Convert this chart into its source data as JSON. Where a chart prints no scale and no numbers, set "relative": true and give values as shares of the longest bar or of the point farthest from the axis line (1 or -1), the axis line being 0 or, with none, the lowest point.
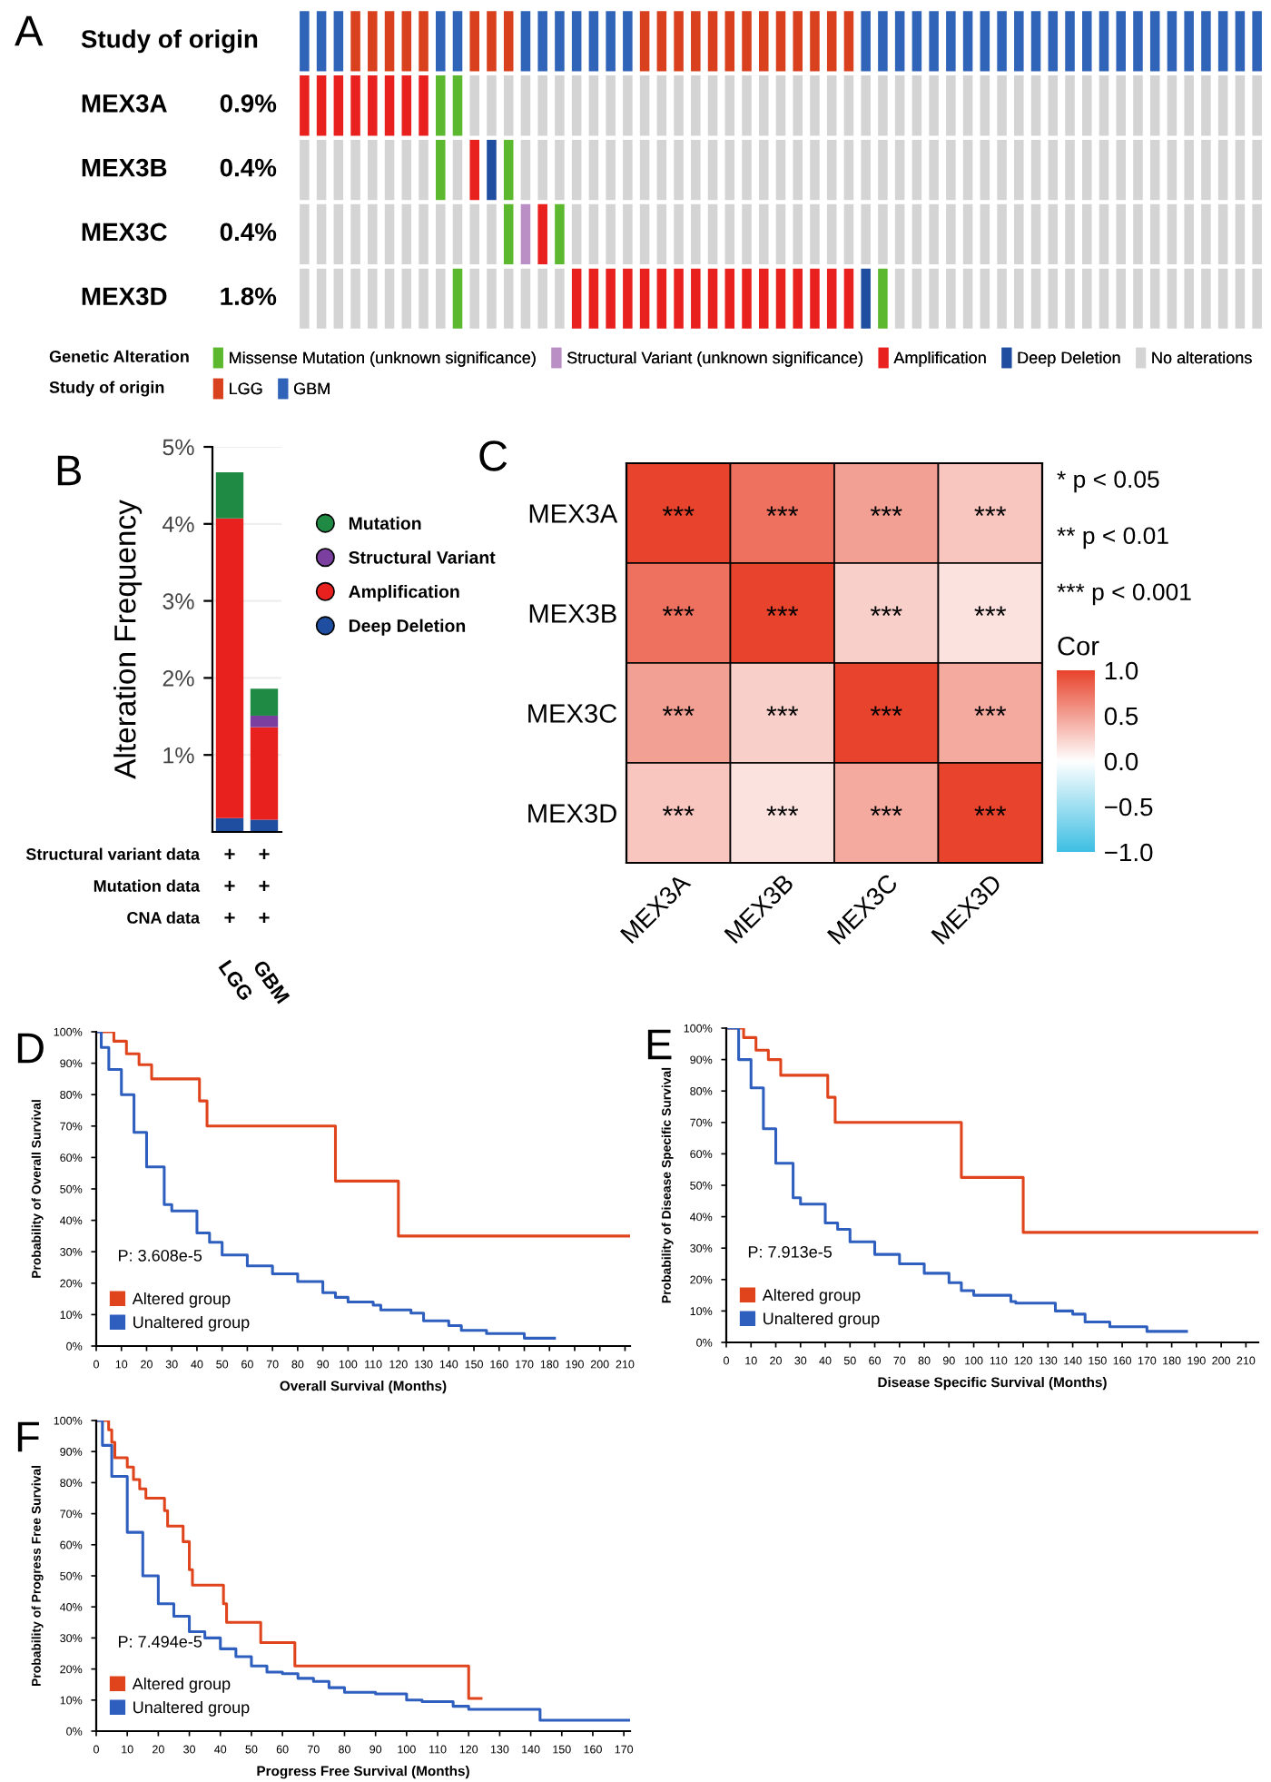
{
  "chart_data": [
    {
      "type": "bar",
      "title": "A",
      "stacked": true,
      "relative": true,
      "legend": "bottom",
      "legend_title": "Genetic Alteration",
      "annotations": [
        "Study of origin",
        "Study of origin",
        "MEX3A",
        "0.9%",
        "MEX3B",
        "0.4%",
        "MEX3C",
        "0.4%",
        "MEX3D",
        "1.8%"
      ],
      "categories": [
        null,
        null,
        null,
        null,
        null,
        null,
        null,
        null,
        null,
        null,
        null,
        null,
        null,
        null,
        null,
        null,
        null,
        null,
        null,
        null,
        null,
        null,
        null,
        null,
        null,
        null,
        null,
        null,
        null,
        null,
        null,
        null,
        null,
        null,
        null,
        null,
        null,
        null,
        null,
        null,
        null,
        null,
        null,
        null,
        null,
        null,
        null,
        null,
        null,
        null,
        null,
        null,
        null,
        null,
        null,
        null,
        null
      ],
      "series": [
        {
          "values": [
            0.2,
            0.2,
            0.2,
            0.2,
            0.2,
            0.2,
            0.2,
            0.2,
            0.2,
            0.2,
            0.2,
            0.2,
            0.2,
            0.2,
            0.2,
            0.2,
            0.2,
            0.2,
            0.2,
            0.2,
            0.2,
            0.2,
            0.2,
            0.2,
            0.2,
            0.2,
            0.2,
            0.2,
            0.2,
            0.2,
            0.2,
            0.2,
            0.2,
            0.2,
            0.2,
            0.2,
            0.2,
            0.2,
            0.2,
            0.2,
            0.2,
            0.2,
            0.2,
            0.2,
            0.2,
            0.2,
            0.2,
            0.2,
            0.2,
            0.2,
            0.2,
            0.2,
            0.2,
            0.2,
            0.2,
            0.2,
            0.2
          ],
          "colors": [
            "#d4d4d4",
            "#d4d4d4",
            "#d4d4d4",
            "#d4d4d4",
            "#d4d4d4",
            "#d4d4d4",
            "#d4d4d4",
            "#d4d4d4",
            "#d4d4d4",
            "#5cb82e",
            "#d4d4d4",
            "#d4d4d4",
            "#d4d4d4",
            "#d4d4d4",
            "#d4d4d4",
            "#d4d4d4",
            "#e8211f",
            "#e8211f",
            "#e8211f",
            "#e8211f",
            "#e8211f",
            "#e8211f",
            "#e8211f",
            "#e8211f",
            "#e8211f",
            "#e8211f",
            "#e8211f",
            "#e8211f",
            "#e8211f",
            "#e8211f",
            "#e8211f",
            "#e8211f",
            "#e8211f",
            "#1f4ea0",
            "#5cb82e",
            "#d4d4d4",
            "#d4d4d4",
            "#d4d4d4",
            "#d4d4d4",
            "#d4d4d4",
            "#d4d4d4",
            "#d4d4d4",
            "#d4d4d4",
            "#d4d4d4",
            "#d4d4d4",
            "#d4d4d4",
            "#d4d4d4",
            "#d4d4d4",
            "#d4d4d4",
            "#d4d4d4",
            "#d4d4d4",
            "#d4d4d4",
            "#d4d4d4",
            "#d4d4d4",
            "#d4d4d4",
            "#d4d4d4",
            "#d4d4d4"
          ]
        },
        {
          "values": [
            0.2,
            0.2,
            0.2,
            0.2,
            0.2,
            0.2,
            0.2,
            0.2,
            0.2,
            0.2,
            0.2,
            0.2,
            0.2,
            0.2,
            0.2,
            0.2,
            0.2,
            0.2,
            0.2,
            0.2,
            0.2,
            0.2,
            0.2,
            0.2,
            0.2,
            0.2,
            0.2,
            0.2,
            0.2,
            0.2,
            0.2,
            0.2,
            0.2,
            0.2,
            0.2,
            0.2,
            0.2,
            0.2,
            0.2,
            0.2,
            0.2,
            0.2,
            0.2,
            0.2,
            0.2,
            0.2,
            0.2,
            0.2,
            0.2,
            0.2,
            0.2,
            0.2,
            0.2,
            0.2,
            0.2,
            0.2,
            0.2
          ],
          "colors": [
            "#d4d4d4",
            "#d4d4d4",
            "#d4d4d4",
            "#d4d4d4",
            "#d4d4d4",
            "#d4d4d4",
            "#d4d4d4",
            "#d4d4d4",
            "#d4d4d4",
            "#d4d4d4",
            "#d4d4d4",
            "#d4d4d4",
            "#5cb82e",
            "#b98fc6",
            "#e8211f",
            "#5cb82e",
            "#d4d4d4",
            "#d4d4d4",
            "#d4d4d4",
            "#d4d4d4",
            "#d4d4d4",
            "#d4d4d4",
            "#d4d4d4",
            "#d4d4d4",
            "#d4d4d4",
            "#d4d4d4",
            "#d4d4d4",
            "#d4d4d4",
            "#d4d4d4",
            "#d4d4d4",
            "#d4d4d4",
            "#d4d4d4",
            "#d4d4d4",
            "#d4d4d4",
            "#d4d4d4",
            "#d4d4d4",
            "#d4d4d4",
            "#d4d4d4",
            "#d4d4d4",
            "#d4d4d4",
            "#d4d4d4",
            "#d4d4d4",
            "#d4d4d4",
            "#d4d4d4",
            "#d4d4d4",
            "#d4d4d4",
            "#d4d4d4",
            "#d4d4d4",
            "#d4d4d4",
            "#d4d4d4",
            "#d4d4d4",
            "#d4d4d4",
            "#d4d4d4",
            "#d4d4d4",
            "#d4d4d4",
            "#d4d4d4",
            "#d4d4d4"
          ]
        },
        {
          "values": [
            0.2,
            0.2,
            0.2,
            0.2,
            0.2,
            0.2,
            0.2,
            0.2,
            0.2,
            0.2,
            0.2,
            0.2,
            0.2,
            0.2,
            0.2,
            0.2,
            0.2,
            0.2,
            0.2,
            0.2,
            0.2,
            0.2,
            0.2,
            0.2,
            0.2,
            0.2,
            0.2,
            0.2,
            0.2,
            0.2,
            0.2,
            0.2,
            0.2,
            0.2,
            0.2,
            0.2,
            0.2,
            0.2,
            0.2,
            0.2,
            0.2,
            0.2,
            0.2,
            0.2,
            0.2,
            0.2,
            0.2,
            0.2,
            0.2,
            0.2,
            0.2,
            0.2,
            0.2,
            0.2,
            0.2,
            0.2,
            0.2
          ],
          "colors": [
            "#d4d4d4",
            "#d4d4d4",
            "#d4d4d4",
            "#d4d4d4",
            "#d4d4d4",
            "#d4d4d4",
            "#d4d4d4",
            "#d4d4d4",
            "#5cb82e",
            "#d4d4d4",
            "#e8211f",
            "#1f4ea0",
            "#5cb82e",
            "#d4d4d4",
            "#d4d4d4",
            "#d4d4d4",
            "#d4d4d4",
            "#d4d4d4",
            "#d4d4d4",
            "#d4d4d4",
            "#d4d4d4",
            "#d4d4d4",
            "#d4d4d4",
            "#d4d4d4",
            "#d4d4d4",
            "#d4d4d4",
            "#d4d4d4",
            "#d4d4d4",
            "#d4d4d4",
            "#d4d4d4",
            "#d4d4d4",
            "#d4d4d4",
            "#d4d4d4",
            "#d4d4d4",
            "#d4d4d4",
            "#d4d4d4",
            "#d4d4d4",
            "#d4d4d4",
            "#d4d4d4",
            "#d4d4d4",
            "#d4d4d4",
            "#d4d4d4",
            "#d4d4d4",
            "#d4d4d4",
            "#d4d4d4",
            "#d4d4d4",
            "#d4d4d4",
            "#d4d4d4",
            "#d4d4d4",
            "#d4d4d4",
            "#d4d4d4",
            "#d4d4d4",
            "#d4d4d4",
            "#d4d4d4",
            "#d4d4d4",
            "#d4d4d4",
            "#d4d4d4"
          ]
        },
        {
          "values": [
            0.2,
            0.2,
            0.2,
            0.2,
            0.2,
            0.2,
            0.2,
            0.2,
            0.2,
            0.2,
            0.2,
            0.2,
            0.2,
            0.2,
            0.2,
            0.2,
            0.2,
            0.2,
            0.2,
            0.2,
            0.2,
            0.2,
            0.2,
            0.2,
            0.2,
            0.2,
            0.2,
            0.2,
            0.2,
            0.2,
            0.2,
            0.2,
            0.2,
            0.2,
            0.2,
            0.2,
            0.2,
            0.2,
            0.2,
            0.2,
            0.2,
            0.2,
            0.2,
            0.2,
            0.2,
            0.2,
            0.2,
            0.2,
            0.2,
            0.2,
            0.2,
            0.2,
            0.2,
            0.2,
            0.2,
            0.2,
            0.2
          ],
          "colors": [
            "#e8211f",
            "#e8211f",
            "#e8211f",
            "#e8211f",
            "#e8211f",
            "#e8211f",
            "#e8211f",
            "#e8211f",
            "#5cb82e",
            "#5cb82e",
            "#d4d4d4",
            "#d4d4d4",
            "#d4d4d4",
            "#d4d4d4",
            "#d4d4d4",
            "#d4d4d4",
            "#d4d4d4",
            "#d4d4d4",
            "#d4d4d4",
            "#d4d4d4",
            "#d4d4d4",
            "#d4d4d4",
            "#d4d4d4",
            "#d4d4d4",
            "#d4d4d4",
            "#d4d4d4",
            "#d4d4d4",
            "#d4d4d4",
            "#d4d4d4",
            "#d4d4d4",
            "#d4d4d4",
            "#d4d4d4",
            "#d4d4d4",
            "#d4d4d4",
            "#d4d4d4",
            "#d4d4d4",
            "#d4d4d4",
            "#d4d4d4",
            "#d4d4d4",
            "#d4d4d4",
            "#d4d4d4",
            "#d4d4d4",
            "#d4d4d4",
            "#d4d4d4",
            "#d4d4d4",
            "#d4d4d4",
            "#d4d4d4",
            "#d4d4d4",
            "#d4d4d4",
            "#d4d4d4",
            "#d4d4d4",
            "#d4d4d4",
            "#d4d4d4",
            "#d4d4d4",
            "#d4d4d4",
            "#d4d4d4",
            "#d4d4d4"
          ]
        },
        {
          "values": [
            0.2,
            0.2,
            0.2,
            0.2,
            0.2,
            0.2,
            0.2,
            0.2,
            0.2,
            0.2,
            0.2,
            0.2,
            0.2,
            0.2,
            0.2,
            0.2,
            0.2,
            0.2,
            0.2,
            0.2,
            0.2,
            0.2,
            0.2,
            0.2,
            0.2,
            0.2,
            0.2,
            0.2,
            0.2,
            0.2,
            0.2,
            0.2,
            0.2,
            0.2,
            0.2,
            0.2,
            0.2,
            0.2,
            0.2,
            0.2,
            0.2,
            0.2,
            0.2,
            0.2,
            0.2,
            0.2,
            0.2,
            0.2,
            0.2,
            0.2,
            0.2,
            0.2,
            0.2,
            0.2,
            0.2,
            0.2,
            0.2
          ],
          "colors": [
            "#2f64b9",
            "#2f64b9",
            "#2f64b9",
            "#d9401e",
            "#d9401e",
            "#d9401e",
            "#d9401e",
            "#d9401e",
            "#2f64b9",
            "#2f64b9",
            "#d9401e",
            "#d9401e",
            "#d9401e",
            "#2f64b9",
            "#2f64b9",
            "#2f64b9",
            "#2f64b9",
            "#2f64b9",
            "#2f64b9",
            "#2f64b9",
            "#d9401e",
            "#d9401e",
            "#d9401e",
            "#d9401e",
            "#d9401e",
            "#d9401e",
            "#d9401e",
            "#d9401e",
            "#d9401e",
            "#d9401e",
            "#d9401e",
            "#d9401e",
            "#d9401e",
            "#2f64b9",
            "#2f64b9",
            "#2f64b9",
            "#2f64b9",
            "#2f64b9",
            "#2f64b9",
            "#2f64b9",
            "#2f64b9",
            "#2f64b9",
            "#2f64b9",
            "#2f64b9",
            "#2f64b9",
            "#2f64b9",
            "#2f64b9",
            "#2f64b9",
            "#2f64b9",
            "#2f64b9",
            "#2f64b9",
            "#2f64b9",
            "#2f64b9",
            "#2f64b9",
            "#2f64b9",
            "#2f64b9",
            "#2f64b9"
          ]
        },
        {
          "name": "Missense Mutation (unknown significance)",
          "color": "#5cb82e",
          "values": [
            null,
            null,
            null,
            null,
            null,
            null,
            null,
            null,
            null,
            null,
            null,
            null,
            null,
            null,
            null,
            null,
            null,
            null,
            null,
            null,
            null,
            null,
            null,
            null,
            null,
            null,
            null,
            null,
            null,
            null,
            null,
            null,
            null,
            null,
            null,
            null,
            null,
            null,
            null,
            null,
            null,
            null,
            null,
            null,
            null,
            null,
            null,
            null,
            null,
            null,
            null,
            null,
            null,
            null,
            null,
            null,
            null
          ]
        },
        {
          "name": "Structural Variant (unknown significance)",
          "color": "#b98fc6",
          "values": [
            null,
            null,
            null,
            null,
            null,
            null,
            null,
            null,
            null,
            null,
            null,
            null,
            null,
            null,
            null,
            null,
            null,
            null,
            null,
            null,
            null,
            null,
            null,
            null,
            null,
            null,
            null,
            null,
            null,
            null,
            null,
            null,
            null,
            null,
            null,
            null,
            null,
            null,
            null,
            null,
            null,
            null,
            null,
            null,
            null,
            null,
            null,
            null,
            null,
            null,
            null,
            null,
            null,
            null,
            null,
            null,
            null
          ]
        },
        {
          "name": "Amplification",
          "color": "#e8211f",
          "values": [
            null,
            null,
            null,
            null,
            null,
            null,
            null,
            null,
            null,
            null,
            null,
            null,
            null,
            null,
            null,
            null,
            null,
            null,
            null,
            null,
            null,
            null,
            null,
            null,
            null,
            null,
            null,
            null,
            null,
            null,
            null,
            null,
            null,
            null,
            null,
            null,
            null,
            null,
            null,
            null,
            null,
            null,
            null,
            null,
            null,
            null,
            null,
            null,
            null,
            null,
            null,
            null,
            null,
            null,
            null,
            null,
            null
          ]
        },
        {
          "name": "Deep Deletion",
          "color": "#1f4ea0",
          "values": [
            null,
            null,
            null,
            null,
            null,
            null,
            null,
            null,
            null,
            null,
            null,
            null,
            null,
            null,
            null,
            null,
            null,
            null,
            null,
            null,
            null,
            null,
            null,
            null,
            null,
            null,
            null,
            null,
            null,
            null,
            null,
            null,
            null,
            null,
            null,
            null,
            null,
            null,
            null,
            null,
            null,
            null,
            null,
            null,
            null,
            null,
            null,
            null,
            null,
            null,
            null,
            null,
            null,
            null,
            null,
            null,
            null
          ]
        },
        {
          "name": "No alterations",
          "color": "#d4d4d4",
          "values": [
            null,
            null,
            null,
            null,
            null,
            null,
            null,
            null,
            null,
            null,
            null,
            null,
            null,
            null,
            null,
            null,
            null,
            null,
            null,
            null,
            null,
            null,
            null,
            null,
            null,
            null,
            null,
            null,
            null,
            null,
            null,
            null,
            null,
            null,
            null,
            null,
            null,
            null,
            null,
            null,
            null,
            null,
            null,
            null,
            null,
            null,
            null,
            null,
            null,
            null,
            null,
            null,
            null,
            null,
            null,
            null,
            null
          ]
        },
        {
          "name": "LGG",
          "color": "#d9401e",
          "values": [
            null,
            null,
            null,
            null,
            null,
            null,
            null,
            null,
            null,
            null,
            null,
            null,
            null,
            null,
            null,
            null,
            null,
            null,
            null,
            null,
            null,
            null,
            null,
            null,
            null,
            null,
            null,
            null,
            null,
            null,
            null,
            null,
            null,
            null,
            null,
            null,
            null,
            null,
            null,
            null,
            null,
            null,
            null,
            null,
            null,
            null,
            null,
            null,
            null,
            null,
            null,
            null,
            null,
            null,
            null,
            null,
            null
          ]
        },
        {
          "name": "GBM",
          "color": "#2f64b9",
          "values": [
            null,
            null,
            null,
            null,
            null,
            null,
            null,
            null,
            null,
            null,
            null,
            null,
            null,
            null,
            null,
            null,
            null,
            null,
            null,
            null,
            null,
            null,
            null,
            null,
            null,
            null,
            null,
            null,
            null,
            null,
            null,
            null,
            null,
            null,
            null,
            null,
            null,
            null,
            null,
            null,
            null,
            null,
            null,
            null,
            null,
            null,
            null,
            null,
            null,
            null,
            null,
            null,
            null,
            null,
            null,
            null,
            null
          ]
        }
      ]
    },
    {
      "type": "bar",
      "title": "B",
      "stacked": true,
      "categories": [
        "LGG",
        "GBM"
      ],
      "ylabel": "Alteration Frequency",
      "series": [
        {
          "name": "Deep Deletion",
          "color": "#1f4ea0",
          "values": [
            0.18,
            0.16
          ]
        },
        {
          "name": "Amplification",
          "color": "#e8211f",
          "values": [
            3.89,
            1.2
          ]
        },
        {
          "name": "Structural Variant",
          "color": "#7b3fa0",
          "values": [
            0,
            0.15
          ]
        },
        {
          "name": "Mutation",
          "color": "#1e8a44",
          "values": [
            0.6,
            0.35
          ]
        }
      ],
      "ylim": [
        0,
        5
      ],
      "yticks": [
        {
          "value": 1,
          "label": "1%"
        },
        {
          "value": 2,
          "label": "2%"
        },
        {
          "value": 3,
          "label": "3%"
        },
        {
          "value": 4,
          "label": "4%"
        },
        {
          "value": 5,
          "label": "5%"
        }
      ],
      "grid": "y",
      "legend": "right",
      "annotations": [
        "Structural variant data",
        "+",
        "+",
        "Mutation data",
        "+",
        "+",
        "CNA data",
        "+",
        "+"
      ]
    },
    {
      "type": "heatmap",
      "title": "C",
      "categories": [
        "MEX3A",
        "MEX3B",
        "MEX3C",
        "MEX3D"
      ],
      "y_categories": [
        "MEX3A",
        "MEX3B",
        "MEX3C",
        "MEX3D"
      ],
      "cells": [
        [
          1.0,
          0.75,
          0.5,
          0.3
        ],
        [
          0.75,
          1.0,
          0.25,
          0.15
        ],
        [
          0.5,
          0.25,
          1.0,
          0.45
        ],
        [
          0.3,
          0.15,
          0.45,
          1.0
        ]
      ],
      "cell_labels": [
        [
          "***",
          "***",
          "***",
          "***"
        ],
        [
          "***",
          "***",
          "***",
          "***"
        ],
        [
          "***",
          "***",
          "***",
          "***"
        ],
        [
          "***",
          "***",
          "***",
          "***"
        ]
      ],
      "clim": [
        -1,
        1
      ],
      "cticks": [
        {
          "value": -1,
          "label": "−1.0"
        },
        {
          "value": -0.5,
          "label": "−0.5"
        },
        {
          "value": 0,
          "label": "0.0"
        },
        {
          "value": 0.5,
          "label": "0.5"
        },
        {
          "value": 1,
          "label": "1.0"
        }
      ],
      "clabel": "Cor",
      "annotations": [
        "* p < 0.05",
        "** p < 0.01",
        "*** p < 0.001"
      ]
    },
    {
      "type": "step",
      "title": "D",
      "xlabel": "Overall Survival (Months)",
      "ylabel": "Probability of Overall Survival",
      "series": [
        {
          "name": "Altered group",
          "color": "#e0441c",
          "x": [
            0,
            7,
            12,
            17,
            22,
            41,
            44,
            95,
            120,
            212
          ],
          "values": [
            100,
            97,
            93,
            89.5,
            85,
            78,
            70,
            52.5,
            35,
            35
          ]
        },
        {
          "name": "Unaltered group",
          "color": "#2e5fbf",
          "x": [
            0,
            2,
            5,
            10,
            15,
            20,
            27,
            30,
            40,
            45,
            50,
            60,
            70,
            80,
            90,
            95,
            100,
            110,
            113,
            125,
            130,
            140,
            145,
            155,
            170,
            182
          ],
          "values": [
            100,
            95,
            88,
            80,
            68,
            57,
            45,
            43,
            36,
            33,
            29,
            25.5,
            23,
            20.5,
            17,
            15.5,
            14,
            13,
            11.5,
            10.5,
            8,
            6.5,
            5,
            4,
            2.5,
            2.5
          ]
        }
      ],
      "xlim": [
        0,
        212
      ],
      "xticks": [
        0,
        10,
        20,
        30,
        40,
        50,
        60,
        70,
        80,
        90,
        100,
        110,
        120,
        130,
        140,
        150,
        160,
        170,
        180,
        190,
        200,
        210
      ],
      "ylim": [
        0,
        100
      ],
      "yticks": [
        {
          "value": 0,
          "label": "0%"
        },
        {
          "value": 10,
          "label": "10%"
        },
        {
          "value": 20,
          "label": "20%"
        },
        {
          "value": 30,
          "label": "30%"
        },
        {
          "value": 40,
          "label": "40%"
        },
        {
          "value": 50,
          "label": "50%"
        },
        {
          "value": 60,
          "label": "60%"
        },
        {
          "value": 70,
          "label": "70%"
        },
        {
          "value": 80,
          "label": "80%"
        },
        {
          "value": 90,
          "label": "90%"
        },
        {
          "value": 100,
          "label": "100%"
        }
      ],
      "legend": "bottom left",
      "annotations": [
        "P: 3.608e-5"
      ]
    },
    {
      "type": "step",
      "title": "E",
      "xlabel": "Disease Specific Survival (Months)",
      "ylabel": "Probability of Disease Specific Survival",
      "series": [
        {
          "name": "Altered group",
          "color": "#e0441c",
          "x": [
            0,
            7,
            12,
            17,
            22,
            41,
            44,
            95,
            120,
            215
          ],
          "values": [
            100,
            97,
            93,
            90,
            85,
            78,
            70,
            52.5,
            35,
            35
          ]
        },
        {
          "name": "Unaltered group",
          "color": "#2e5fbf",
          "x": [
            0,
            5,
            10,
            15,
            20,
            27,
            30,
            40,
            45,
            50,
            60,
            70,
            80,
            90,
            95,
            100,
            115,
            117,
            133,
            140,
            145,
            155,
            170,
            186
          ],
          "values": [
            100,
            90,
            81,
            68,
            57,
            46,
            44,
            38,
            36,
            32,
            28,
            25,
            22,
            19,
            16.5,
            15,
            13,
            12.5,
            10,
            9,
            6.5,
            5,
            3.5,
            3.5
          ]
        }
      ],
      "xlim": [
        0,
        215
      ],
      "xticks": [
        0,
        10,
        20,
        30,
        40,
        50,
        60,
        70,
        80,
        90,
        100,
        110,
        120,
        130,
        140,
        150,
        160,
        170,
        180,
        190,
        200,
        210
      ],
      "ylim": [
        0,
        100
      ],
      "yticks": [
        {
          "value": 0,
          "label": "0%"
        },
        {
          "value": 10,
          "label": "10%"
        },
        {
          "value": 20,
          "label": "20%"
        },
        {
          "value": 30,
          "label": "30%"
        },
        {
          "value": 40,
          "label": "40%"
        },
        {
          "value": 50,
          "label": "50%"
        },
        {
          "value": 60,
          "label": "60%"
        },
        {
          "value": 70,
          "label": "70%"
        },
        {
          "value": 80,
          "label": "80%"
        },
        {
          "value": 90,
          "label": "90%"
        },
        {
          "value": 100,
          "label": "100%"
        }
      ],
      "legend": "bottom left",
      "annotations": [
        "P: 7.913e-5"
      ]
    },
    {
      "type": "step",
      "title": "F",
      "xlabel": "Progress Free Survival (Months)",
      "ylabel": "Probability of Progress Free Survival",
      "series": [
        {
          "name": "Altered group",
          "color": "#e0441c",
          "x": [
            0,
            4,
            5,
            6,
            10,
            12,
            14,
            16,
            22,
            23,
            28,
            30,
            31,
            41,
            42,
            53,
            64,
            120,
            124
          ],
          "values": [
            100,
            97,
            93,
            88,
            85,
            81,
            78,
            75,
            71,
            66,
            61,
            52,
            47,
            41,
            35,
            28.5,
            21,
            10.5,
            10.5
          ]
        },
        {
          "name": "Unaltered group",
          "color": "#2e5fbf",
          "x": [
            0,
            2,
            5,
            10,
            15,
            20,
            25,
            30,
            35,
            40,
            45,
            50,
            55,
            60,
            65,
            70,
            75,
            80,
            90,
            97,
            100,
            105,
            115,
            120,
            143,
            172
          ],
          "values": [
            100,
            92,
            82,
            64,
            50,
            41,
            37,
            32,
            30,
            26.5,
            24,
            21,
            19,
            18.5,
            17,
            16,
            14,
            12.5,
            12,
            12,
            10,
            9.5,
            8,
            7,
            3.5,
            3.5
          ]
        }
      ],
      "xlim": [
        0,
        172
      ],
      "xticks": [
        0,
        10,
        20,
        30,
        40,
        50,
        60,
        70,
        80,
        90,
        100,
        110,
        120,
        130,
        140,
        150,
        160,
        170
      ],
      "ylim": [
        0,
        100
      ],
      "yticks": [
        {
          "value": 0,
          "label": "0%"
        },
        {
          "value": 10,
          "label": "10%"
        },
        {
          "value": 20,
          "label": "20%"
        },
        {
          "value": 30,
          "label": "30%"
        },
        {
          "value": 40,
          "label": "40%"
        },
        {
          "value": 50,
          "label": "50%"
        },
        {
          "value": 60,
          "label": "60%"
        },
        {
          "value": 70,
          "label": "70%"
        },
        {
          "value": 80,
          "label": "80%"
        },
        {
          "value": 90,
          "label": "90%"
        },
        {
          "value": 100,
          "label": "100%"
        }
      ],
      "legend": "bottom left",
      "annotations": [
        "P: 7.494e-5"
      ]
    }
  ]
}
